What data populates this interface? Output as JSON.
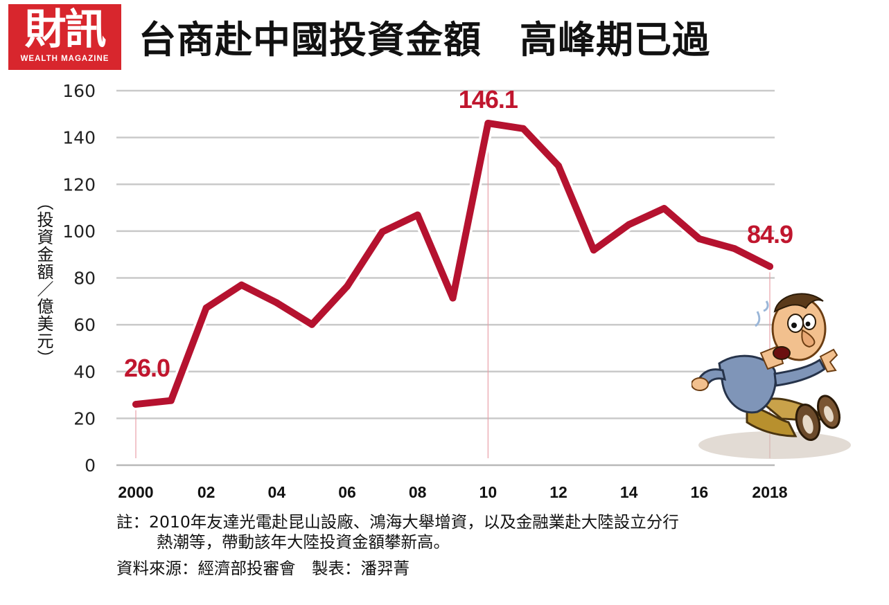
{
  "header": {
    "logo": "財訊",
    "logo_subtitle": "WEALTH MAGAZINE",
    "title": "台商赴中國投資金額　高峰期已過"
  },
  "chart_data": {
    "type": "line",
    "title": "台商赴中國投資金額　高峰期已過",
    "ylabel": "（投資金額／億美元）",
    "xlabel": "",
    "ylim": [
      0,
      160
    ],
    "yticks": [
      0,
      20,
      40,
      60,
      80,
      100,
      120,
      140,
      160
    ],
    "grid": true,
    "x": [
      2000,
      2001,
      2002,
      2003,
      2004,
      2005,
      2006,
      2007,
      2008,
      2009,
      2010,
      2011,
      2012,
      2013,
      2014,
      2015,
      2016,
      2017,
      2018
    ],
    "xtick_labels": [
      {
        "x": 2000,
        "label": "2000"
      },
      {
        "x": 2002,
        "label": "02"
      },
      {
        "x": 2004,
        "label": "04"
      },
      {
        "x": 2006,
        "label": "06"
      },
      {
        "x": 2008,
        "label": "08"
      },
      {
        "x": 2010,
        "label": "10"
      },
      {
        "x": 2012,
        "label": "12"
      },
      {
        "x": 2014,
        "label": "14"
      },
      {
        "x": 2016,
        "label": "16"
      },
      {
        "x": 2018,
        "label": "2018"
      }
    ],
    "series": [
      {
        "values": [
          26.0,
          27.6,
          67.2,
          77.0,
          69.4,
          60.1,
          76.4,
          99.7,
          106.9,
          71.4,
          146.1,
          143.8,
          127.9,
          91.9,
          102.8,
          109.7,
          96.7,
          92.5,
          84.9
        ]
      }
    ],
    "annotations": [
      {
        "x": 2000,
        "value": 26.0,
        "label": "26.0"
      },
      {
        "x": 2010,
        "value": 146.1,
        "label": "146.1"
      },
      {
        "x": 2018,
        "value": 84.9,
        "label": "84.9"
      }
    ],
    "colors": {
      "line": "#b5122f",
      "label": "#c0162e",
      "grid": "#c9c9c9",
      "guide": "#e8a0a8"
    }
  },
  "notes": {
    "note_line1": "註：2010年友達光電赴昆山設廠、鴻海大舉增資，以及金融業赴大陸設立分行",
    "note_line2": "熱潮等，帶動該年大陸投資金額攀新高。",
    "source": "資料來源：經濟部投審會　製表：潘羿菁"
  },
  "illustration": {
    "icon": "falling-man-icon"
  }
}
